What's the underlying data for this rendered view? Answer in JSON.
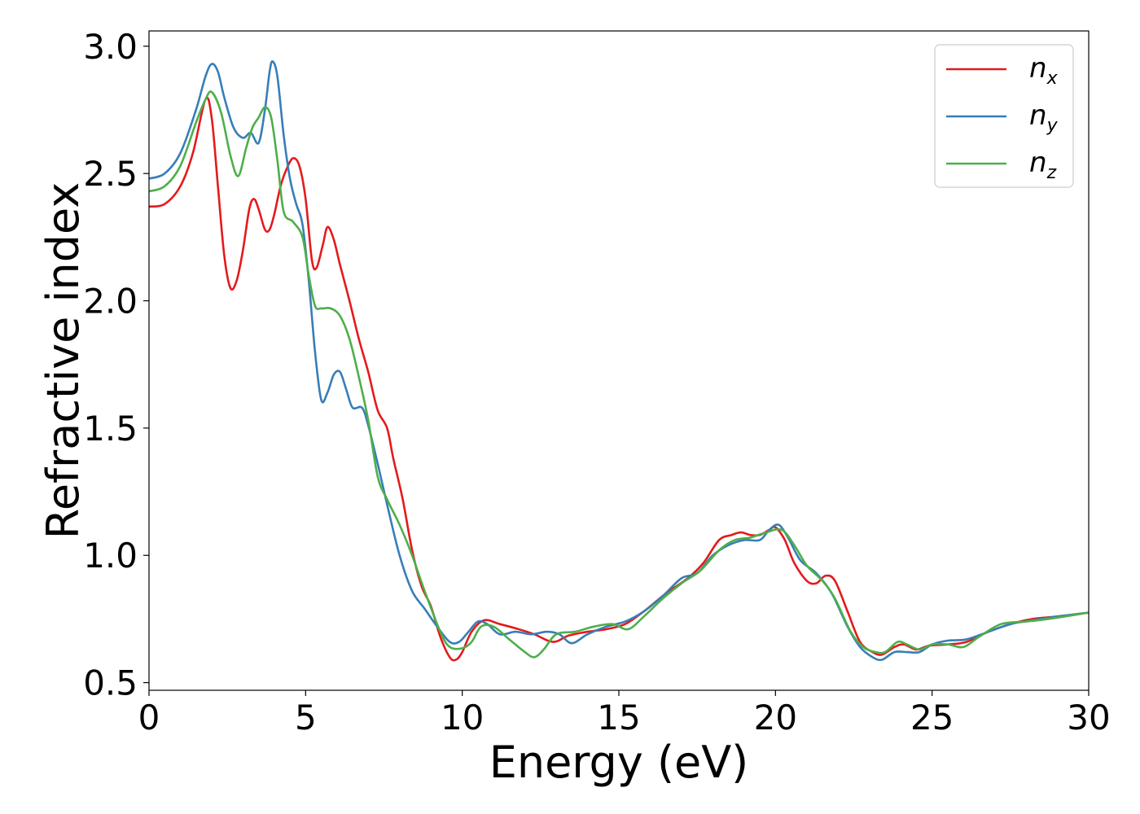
{
  "chart_data": {
    "type": "line",
    "title": "",
    "xlabel": "Energy (eV)",
    "ylabel": "Refractive index",
    "xlim": [
      0,
      30
    ],
    "ylim": [
      0.47,
      3.06
    ],
    "xticks": [
      0,
      5,
      10,
      15,
      20,
      25,
      30
    ],
    "xtick_labels": [
      "0",
      "5",
      "10",
      "15",
      "20",
      "25",
      "30"
    ],
    "yticks": [
      0.5,
      1.0,
      1.5,
      2.0,
      2.5,
      3.0
    ],
    "ytick_labels": [
      "0.5",
      "1.0",
      "1.5",
      "2.0",
      "2.5",
      "3.0"
    ],
    "grid": false,
    "legend_position": "top-right",
    "series": [
      {
        "name": "n",
        "subscript": "x",
        "color": "#e41a1c",
        "points": [
          [
            0,
            2.37
          ],
          [
            0.5,
            2.38
          ],
          [
            1.0,
            2.45
          ],
          [
            1.4,
            2.58
          ],
          [
            1.8,
            2.79
          ],
          [
            2.0,
            2.72
          ],
          [
            2.2,
            2.45
          ],
          [
            2.4,
            2.18
          ],
          [
            2.6,
            2.05
          ],
          [
            2.8,
            2.08
          ],
          [
            3.0,
            2.2
          ],
          [
            3.2,
            2.36
          ],
          [
            3.35,
            2.4
          ],
          [
            3.5,
            2.36
          ],
          [
            3.7,
            2.28
          ],
          [
            3.85,
            2.28
          ],
          [
            4.0,
            2.34
          ],
          [
            4.2,
            2.45
          ],
          [
            4.4,
            2.52
          ],
          [
            4.6,
            2.56
          ],
          [
            4.8,
            2.53
          ],
          [
            5.0,
            2.4
          ],
          [
            5.2,
            2.16
          ],
          [
            5.35,
            2.13
          ],
          [
            5.55,
            2.22
          ],
          [
            5.7,
            2.29
          ],
          [
            5.9,
            2.24
          ],
          [
            6.1,
            2.14
          ],
          [
            6.4,
            2.0
          ],
          [
            6.7,
            1.85
          ],
          [
            7.0,
            1.72
          ],
          [
            7.3,
            1.57
          ],
          [
            7.6,
            1.5
          ],
          [
            7.8,
            1.38
          ],
          [
            8.1,
            1.22
          ],
          [
            8.4,
            1.02
          ],
          [
            8.7,
            0.88
          ],
          [
            9.0,
            0.8
          ],
          [
            9.3,
            0.68
          ],
          [
            9.6,
            0.6
          ],
          [
            9.8,
            0.59
          ],
          [
            10.0,
            0.62
          ],
          [
            10.3,
            0.7
          ],
          [
            10.7,
            0.745
          ],
          [
            11.2,
            0.73
          ],
          [
            11.8,
            0.71
          ],
          [
            12.3,
            0.69
          ],
          [
            12.9,
            0.66
          ],
          [
            13.4,
            0.685
          ],
          [
            14.0,
            0.7
          ],
          [
            14.6,
            0.71
          ],
          [
            15.2,
            0.73
          ],
          [
            15.8,
            0.78
          ],
          [
            16.5,
            0.85
          ],
          [
            17.2,
            0.91
          ],
          [
            17.7,
            0.97
          ],
          [
            18.2,
            1.06
          ],
          [
            18.6,
            1.08
          ],
          [
            18.9,
            1.09
          ],
          [
            19.2,
            1.08
          ],
          [
            19.5,
            1.08
          ],
          [
            19.8,
            1.1
          ],
          [
            20.0,
            1.11
          ],
          [
            20.3,
            1.06
          ],
          [
            20.6,
            0.97
          ],
          [
            21.0,
            0.9
          ],
          [
            21.3,
            0.89
          ],
          [
            21.6,
            0.92
          ],
          [
            21.9,
            0.9
          ],
          [
            22.3,
            0.78
          ],
          [
            22.7,
            0.66
          ],
          [
            23.1,
            0.62
          ],
          [
            23.4,
            0.61
          ],
          [
            23.8,
            0.64
          ],
          [
            24.1,
            0.65
          ],
          [
            24.5,
            0.63
          ],
          [
            24.9,
            0.645
          ],
          [
            25.5,
            0.65
          ],
          [
            26.1,
            0.66
          ],
          [
            26.8,
            0.7
          ],
          [
            27.5,
            0.73
          ],
          [
            28.2,
            0.75
          ],
          [
            29.0,
            0.76
          ],
          [
            30.0,
            0.775
          ]
        ]
      },
      {
        "name": "n",
        "subscript": "y",
        "color": "#377eb8",
        "points": [
          [
            0,
            2.48
          ],
          [
            0.5,
            2.5
          ],
          [
            1.0,
            2.58
          ],
          [
            1.5,
            2.75
          ],
          [
            1.8,
            2.88
          ],
          [
            2.0,
            2.93
          ],
          [
            2.2,
            2.9
          ],
          [
            2.4,
            2.8
          ],
          [
            2.7,
            2.68
          ],
          [
            3.0,
            2.64
          ],
          [
            3.25,
            2.66
          ],
          [
            3.5,
            2.62
          ],
          [
            3.7,
            2.75
          ],
          [
            3.85,
            2.9
          ],
          [
            3.95,
            2.94
          ],
          [
            4.1,
            2.88
          ],
          [
            4.3,
            2.65
          ],
          [
            4.5,
            2.48
          ],
          [
            4.7,
            2.38
          ],
          [
            4.9,
            2.3
          ],
          [
            5.1,
            2.08
          ],
          [
            5.3,
            1.8
          ],
          [
            5.5,
            1.61
          ],
          [
            5.7,
            1.64
          ],
          [
            5.9,
            1.71
          ],
          [
            6.1,
            1.72
          ],
          [
            6.3,
            1.65
          ],
          [
            6.5,
            1.58
          ],
          [
            6.8,
            1.58
          ],
          [
            7.0,
            1.51
          ],
          [
            7.3,
            1.36
          ],
          [
            7.6,
            1.2
          ],
          [
            8.0,
            1.0
          ],
          [
            8.4,
            0.86
          ],
          [
            8.8,
            0.79
          ],
          [
            9.2,
            0.72
          ],
          [
            9.6,
            0.66
          ],
          [
            9.9,
            0.66
          ],
          [
            10.2,
            0.7
          ],
          [
            10.5,
            0.74
          ],
          [
            10.8,
            0.73
          ],
          [
            11.2,
            0.69
          ],
          [
            11.7,
            0.7
          ],
          [
            12.2,
            0.69
          ],
          [
            12.7,
            0.7
          ],
          [
            13.1,
            0.69
          ],
          [
            13.5,
            0.655
          ],
          [
            14.0,
            0.69
          ],
          [
            14.6,
            0.72
          ],
          [
            15.2,
            0.74
          ],
          [
            15.8,
            0.78
          ],
          [
            16.4,
            0.84
          ],
          [
            17.0,
            0.91
          ],
          [
            17.5,
            0.93
          ],
          [
            18.0,
            1.0
          ],
          [
            18.5,
            1.04
          ],
          [
            19.0,
            1.06
          ],
          [
            19.5,
            1.06
          ],
          [
            19.8,
            1.1
          ],
          [
            20.1,
            1.12
          ],
          [
            20.4,
            1.07
          ],
          [
            20.8,
            0.98
          ],
          [
            21.3,
            0.93
          ],
          [
            21.8,
            0.85
          ],
          [
            22.3,
            0.72
          ],
          [
            22.7,
            0.64
          ],
          [
            23.1,
            0.6
          ],
          [
            23.4,
            0.59
          ],
          [
            23.8,
            0.62
          ],
          [
            24.2,
            0.62
          ],
          [
            24.6,
            0.62
          ],
          [
            25.0,
            0.65
          ],
          [
            25.5,
            0.665
          ],
          [
            26.1,
            0.67
          ],
          [
            26.8,
            0.7
          ],
          [
            27.5,
            0.73
          ],
          [
            28.2,
            0.745
          ],
          [
            29.0,
            0.76
          ],
          [
            30.0,
            0.775
          ]
        ]
      },
      {
        "name": "n",
        "subscript": "z",
        "color": "#4daf4a",
        "points": [
          [
            0,
            2.43
          ],
          [
            0.5,
            2.45
          ],
          [
            1.0,
            2.53
          ],
          [
            1.5,
            2.7
          ],
          [
            1.8,
            2.79
          ],
          [
            2.0,
            2.82
          ],
          [
            2.3,
            2.74
          ],
          [
            2.6,
            2.57
          ],
          [
            2.85,
            2.49
          ],
          [
            3.1,
            2.6
          ],
          [
            3.3,
            2.68
          ],
          [
            3.5,
            2.72
          ],
          [
            3.7,
            2.76
          ],
          [
            3.9,
            2.72
          ],
          [
            4.1,
            2.55
          ],
          [
            4.3,
            2.35
          ],
          [
            4.6,
            2.31
          ],
          [
            4.9,
            2.25
          ],
          [
            5.1,
            2.1
          ],
          [
            5.3,
            1.98
          ],
          [
            5.5,
            1.97
          ],
          [
            5.8,
            1.97
          ],
          [
            6.1,
            1.94
          ],
          [
            6.4,
            1.85
          ],
          [
            6.7,
            1.7
          ],
          [
            7.0,
            1.53
          ],
          [
            7.3,
            1.31
          ],
          [
            7.6,
            1.22
          ],
          [
            8.0,
            1.12
          ],
          [
            8.4,
            1.0
          ],
          [
            8.8,
            0.86
          ],
          [
            9.3,
            0.7
          ],
          [
            9.6,
            0.64
          ],
          [
            10.0,
            0.635
          ],
          [
            10.3,
            0.66
          ],
          [
            10.6,
            0.72
          ],
          [
            11.0,
            0.72
          ],
          [
            11.5,
            0.67
          ],
          [
            12.0,
            0.62
          ],
          [
            12.3,
            0.6
          ],
          [
            12.6,
            0.63
          ],
          [
            13.0,
            0.69
          ],
          [
            13.6,
            0.7
          ],
          [
            14.2,
            0.72
          ],
          [
            14.8,
            0.73
          ],
          [
            15.3,
            0.71
          ],
          [
            15.8,
            0.76
          ],
          [
            16.4,
            0.83
          ],
          [
            17.0,
            0.89
          ],
          [
            17.6,
            0.94
          ],
          [
            18.2,
            1.02
          ],
          [
            18.7,
            1.06
          ],
          [
            19.2,
            1.07
          ],
          [
            19.7,
            1.09
          ],
          [
            20.2,
            1.1
          ],
          [
            20.6,
            1.04
          ],
          [
            21.0,
            0.96
          ],
          [
            21.5,
            0.9
          ],
          [
            21.9,
            0.83
          ],
          [
            22.4,
            0.7
          ],
          [
            22.8,
            0.64
          ],
          [
            23.2,
            0.62
          ],
          [
            23.5,
            0.62
          ],
          [
            23.9,
            0.66
          ],
          [
            24.2,
            0.65
          ],
          [
            24.6,
            0.63
          ],
          [
            25.0,
            0.65
          ],
          [
            25.5,
            0.65
          ],
          [
            26.0,
            0.64
          ],
          [
            26.5,
            0.68
          ],
          [
            27.2,
            0.73
          ],
          [
            28.0,
            0.74
          ],
          [
            28.7,
            0.75
          ],
          [
            30.0,
            0.775
          ]
        ]
      }
    ]
  }
}
